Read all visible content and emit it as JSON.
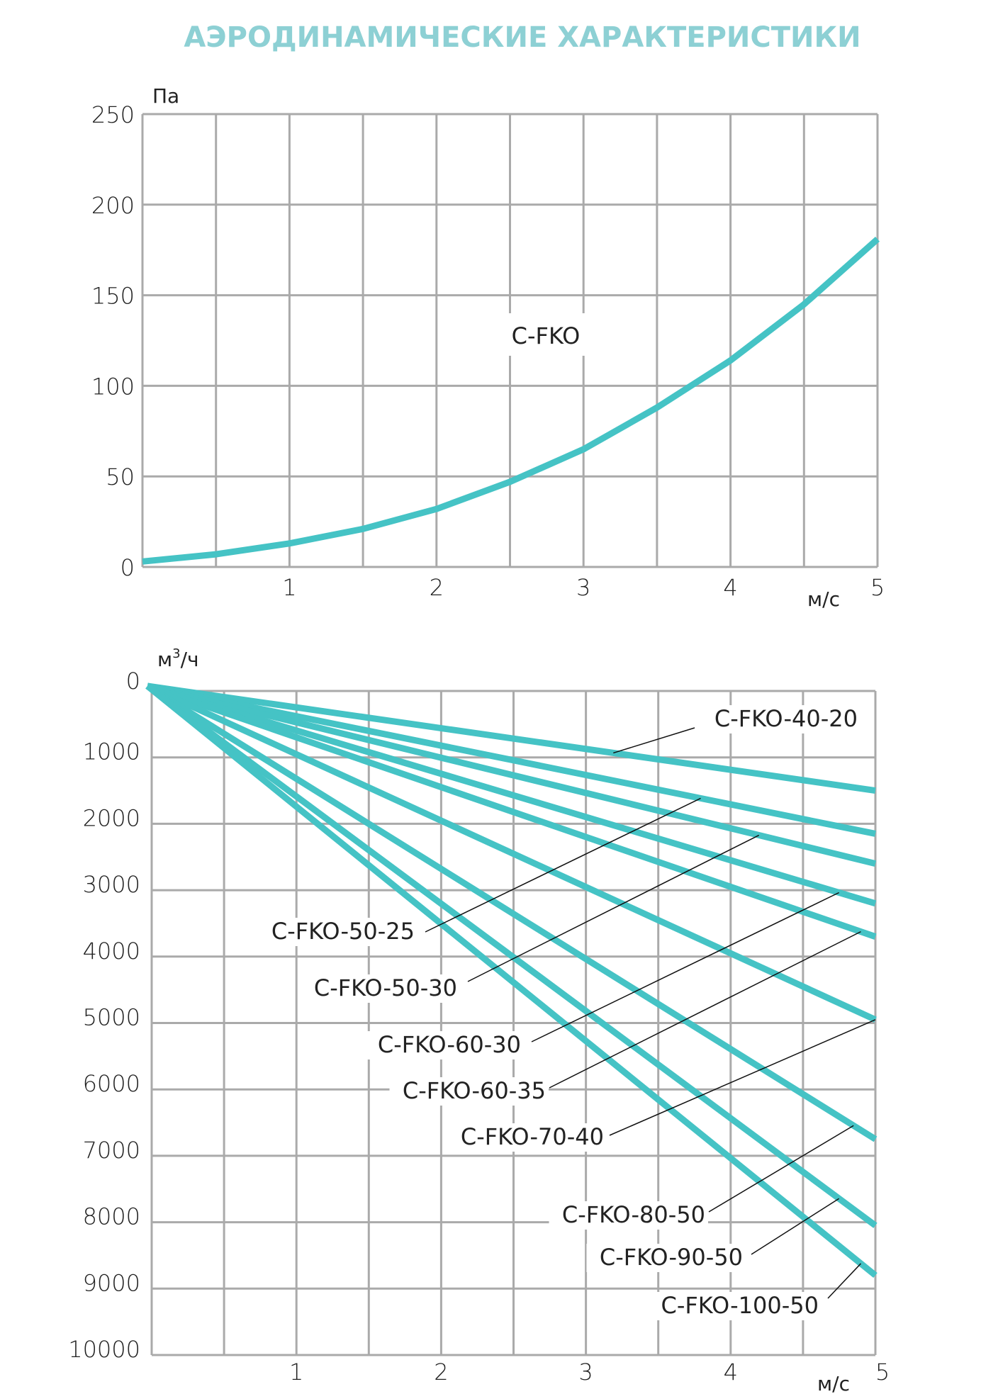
{
  "page_title": "АЭРОДИНАМИЧЕСКИЕ ХАРАКТЕРИСТИКИ",
  "colors": {
    "title": "#8dd0d4",
    "series": "#45c3c5",
    "grid": "#aaaaaa",
    "text": "#222222"
  },
  "chart_data": [
    {
      "type": "line",
      "title": "",
      "xlabel": "м/с",
      "ylabel": "Па",
      "xlim": [
        0,
        5
      ],
      "ylim": [
        0,
        250
      ],
      "grid": true,
      "x_ticks": [
        "1",
        "2",
        "3",
        "4",
        "5"
      ],
      "y_ticks": [
        "0",
        "50",
        "100",
        "150",
        "200",
        "250"
      ],
      "series": [
        {
          "name": "C-FKO",
          "x": [
            0,
            0.5,
            1,
            1.5,
            2,
            2.5,
            3,
            3.5,
            4,
            4.5,
            5
          ],
          "values": [
            3,
            7,
            13,
            21,
            32,
            47,
            65,
            88,
            114,
            145,
            181
          ]
        }
      ]
    },
    {
      "type": "line",
      "title": "",
      "xlabel": "м/с",
      "ylabel": "м³/ч",
      "ylabel_base": "м",
      "ylabel_sup": "3",
      "ylabel_tail": "/ч",
      "xlim": [
        0,
        5
      ],
      "ylim": [
        0,
        10000
      ],
      "y_inverted": true,
      "grid": true,
      "x_ticks": [
        "1",
        "2",
        "3",
        "4",
        "5"
      ],
      "y_ticks": [
        "0",
        "1000",
        "2000",
        "3000",
        "4000",
        "5000",
        "6000",
        "7000",
        "8000",
        "9000",
        "10000"
      ],
      "series": [
        {
          "name": "C-FKO-40-20",
          "x": [
            0,
            5
          ],
          "values": [
            0,
            1500
          ]
        },
        {
          "name": "C-FKO-50-25",
          "x": [
            0,
            5
          ],
          "values": [
            0,
            2150
          ]
        },
        {
          "name": "C-FKO-50-30",
          "x": [
            0,
            5
          ],
          "values": [
            0,
            2600
          ]
        },
        {
          "name": "C-FKO-60-30",
          "x": [
            0,
            5
          ],
          "values": [
            0,
            3200
          ]
        },
        {
          "name": "C-FKO-60-35",
          "x": [
            0,
            5
          ],
          "values": [
            0,
            3700
          ]
        },
        {
          "name": "C-FKO-70-40",
          "x": [
            0,
            5
          ],
          "values": [
            0,
            4950
          ]
        },
        {
          "name": "C-FKO-80-50",
          "x": [
            0,
            5
          ],
          "values": [
            0,
            6750
          ]
        },
        {
          "name": "C-FKO-90-50",
          "x": [
            0,
            5
          ],
          "values": [
            0,
            8050
          ]
        },
        {
          "name": "C-FKO-100-50",
          "x": [
            0,
            5
          ],
          "values": [
            0,
            8800
          ]
        }
      ]
    }
  ]
}
